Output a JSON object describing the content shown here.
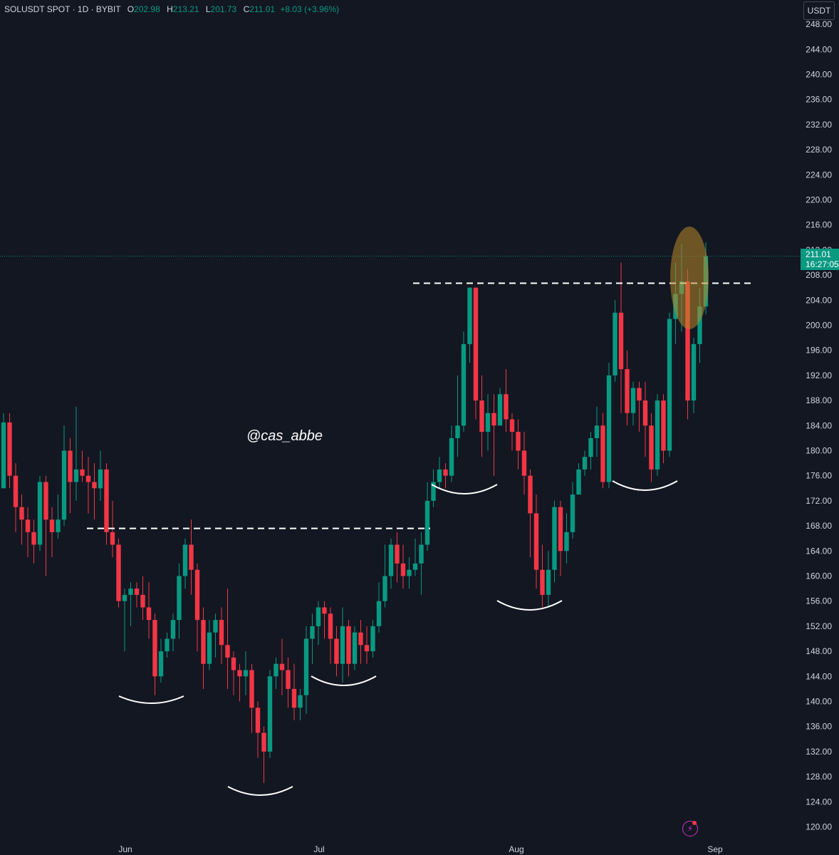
{
  "header": {
    "symbol": "SOLUSDT SPOT · 1D · BYBIT",
    "open_label": "O",
    "open": "202.98",
    "high_label": "H",
    "high": "213.21",
    "low_label": "L",
    "low": "201.73",
    "close_label": "C",
    "close": "211.01",
    "change": "+8.03 (+3.96%)"
  },
  "currency": "USDT",
  "last_price": {
    "value": "211.01",
    "countdown": "16:27:05"
  },
  "watermark": "@cas_abbe",
  "colors": {
    "background": "#131722",
    "up": "#089981",
    "down": "#f23645",
    "text": "#d1d4dc",
    "highlight": "#b8892a"
  },
  "chart_data": {
    "type": "candlestick",
    "y_ticks": [
      "248.00",
      "244.00",
      "240.00",
      "236.00",
      "232.00",
      "228.00",
      "224.00",
      "220.00",
      "216.00",
      "212.00",
      "208.00",
      "204.00",
      "200.00",
      "196.00",
      "192.00",
      "188.00",
      "184.00",
      "180.00",
      "176.00",
      "172.00",
      "168.00",
      "164.00",
      "160.00",
      "156.00",
      "152.00",
      "148.00",
      "144.00",
      "140.00",
      "136.00",
      "132.00",
      "128.00",
      "124.00",
      "120.00"
    ],
    "ylim": [
      119,
      248
    ],
    "x_labels": [
      "Jun",
      "Jul",
      "Aug",
      "Sep"
    ],
    "candles": [
      [
        174,
        184.5,
        174,
        186
      ],
      [
        184.5,
        176,
        174,
        186
      ],
      [
        176,
        171,
        167,
        178
      ],
      [
        171,
        169,
        165,
        173
      ],
      [
        169,
        167,
        163,
        171
      ],
      [
        167,
        165,
        162,
        169
      ],
      [
        165,
        175,
        164,
        176
      ],
      [
        175,
        169,
        160,
        176
      ],
      [
        169,
        167,
        163,
        171
      ],
      [
        167,
        169,
        166,
        173
      ],
      [
        169,
        180,
        168,
        184
      ],
      [
        180,
        175,
        170,
        182
      ],
      [
        175,
        177,
        172,
        187
      ],
      [
        177,
        176,
        175,
        180
      ],
      [
        176,
        175,
        170,
        179
      ],
      [
        175,
        174,
        169,
        178
      ],
      [
        174,
        177,
        172,
        180
      ],
      [
        177,
        167,
        165,
        178
      ],
      [
        167,
        165,
        163,
        172
      ],
      [
        165,
        156,
        155,
        166
      ],
      [
        156,
        157,
        148,
        158
      ],
      [
        157,
        158,
        152,
        159
      ],
      [
        158,
        157,
        155,
        159
      ],
      [
        157,
        155,
        153,
        160
      ],
      [
        155,
        153,
        150,
        159
      ],
      [
        153,
        144,
        141,
        154
      ],
      [
        144,
        148,
        143,
        150
      ],
      [
        148,
        150,
        147,
        151
      ],
      [
        150,
        153,
        148,
        154
      ],
      [
        153,
        160,
        150,
        162
      ],
      [
        160,
        165,
        158,
        166
      ],
      [
        165,
        161,
        157,
        169
      ],
      [
        161,
        153,
        148,
        162
      ],
      [
        153,
        146,
        142,
        155
      ],
      [
        146,
        151,
        145,
        153
      ],
      [
        151,
        153,
        147,
        154
      ],
      [
        153,
        149,
        146,
        155
      ],
      [
        149,
        147,
        142,
        158
      ],
      [
        147,
        145,
        141,
        148
      ],
      [
        145,
        144,
        140,
        146
      ],
      [
        144,
        145,
        141,
        148
      ],
      [
        145,
        139,
        135,
        146
      ],
      [
        139,
        135,
        131,
        140
      ],
      [
        135,
        132,
        127,
        136
      ],
      [
        132,
        144,
        131,
        145
      ],
      [
        144,
        146,
        142,
        147
      ],
      [
        146,
        145,
        141,
        150
      ],
      [
        145,
        142,
        139,
        147
      ],
      [
        142,
        139,
        137,
        146
      ],
      [
        139,
        141,
        137,
        142
      ],
      [
        141,
        150,
        138,
        152
      ],
      [
        150,
        152,
        146,
        154
      ],
      [
        152,
        155,
        149,
        156
      ],
      [
        155,
        154,
        150,
        156
      ],
      [
        154,
        150,
        146,
        155
      ],
      [
        150,
        146,
        144,
        152
      ],
      [
        146,
        152,
        143,
        155
      ],
      [
        152,
        146,
        144,
        153
      ],
      [
        146,
        151,
        145,
        152
      ],
      [
        151,
        149,
        146,
        153
      ],
      [
        149,
        148,
        146,
        152
      ],
      [
        148,
        152,
        147,
        153
      ],
      [
        152,
        156,
        151,
        159
      ],
      [
        156,
        160,
        155,
        165
      ],
      [
        160,
        165,
        158,
        166
      ],
      [
        165,
        162,
        159,
        167
      ],
      [
        162,
        160,
        158,
        165
      ],
      [
        160,
        161,
        158,
        163
      ],
      [
        161,
        162,
        160,
        166
      ],
      [
        162,
        165,
        157,
        167
      ],
      [
        165,
        172,
        164,
        175
      ],
      [
        172,
        175,
        171,
        177
      ],
      [
        175,
        177,
        174,
        179
      ],
      [
        177,
        176,
        174,
        178
      ],
      [
        176,
        182,
        175,
        184
      ],
      [
        182,
        184,
        179,
        192
      ],
      [
        184,
        197,
        183,
        199
      ],
      [
        197,
        206,
        194,
        206
      ],
      [
        206,
        188,
        185,
        206
      ],
      [
        188,
        183,
        179,
        192
      ],
      [
        183,
        186,
        180,
        189
      ],
      [
        186,
        184,
        176,
        189
      ],
      [
        184,
        189,
        184,
        190
      ],
      [
        189,
        185,
        183,
        193
      ],
      [
        185,
        183,
        180,
        186
      ],
      [
        183,
        180,
        177,
        185
      ],
      [
        180,
        176,
        173,
        183
      ],
      [
        176,
        170,
        163,
        177
      ],
      [
        170,
        161,
        158,
        173
      ],
      [
        161,
        157,
        155,
        165
      ],
      [
        157,
        161,
        155,
        164
      ],
      [
        161,
        171,
        159,
        172
      ],
      [
        171,
        164,
        160,
        172
      ],
      [
        164,
        167,
        162,
        170
      ],
      [
        167,
        173,
        166,
        175
      ],
      [
        173,
        177,
        173,
        178
      ],
      [
        177,
        179,
        176,
        180
      ],
      [
        179,
        182,
        177,
        183
      ],
      [
        182,
        184,
        179,
        187
      ],
      [
        184,
        175,
        174,
        186
      ],
      [
        175,
        192,
        174,
        194
      ],
      [
        192,
        202,
        191,
        204
      ],
      [
        202,
        193,
        186,
        210
      ],
      [
        193,
        186,
        184,
        196
      ],
      [
        186,
        190,
        184,
        191
      ],
      [
        190,
        188,
        183,
        191
      ],
      [
        188,
        184,
        179,
        191
      ],
      [
        184,
        177,
        175,
        186
      ],
      [
        177,
        188,
        176,
        189
      ],
      [
        188,
        180,
        178,
        189
      ],
      [
        180,
        201,
        179,
        202
      ],
      [
        201,
        205,
        197,
        210
      ],
      [
        205,
        207,
        199,
        213
      ],
      [
        207,
        188,
        185,
        209
      ],
      [
        188,
        197,
        186,
        198
      ],
      [
        197,
        203,
        194,
        206
      ],
      [
        203,
        211.01,
        201.73,
        213.21
      ]
    ],
    "annotations": {
      "resistance_1": 167.6,
      "resistance_2": 206.7,
      "last_price_line": 211.01
    }
  }
}
